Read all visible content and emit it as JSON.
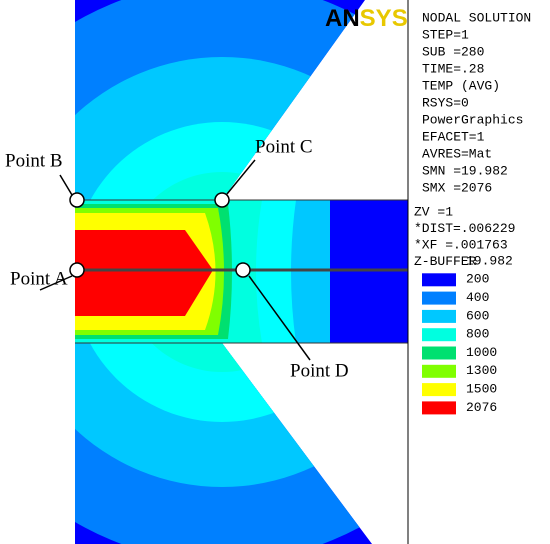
{
  "logo": [
    "AN",
    "SYS"
  ],
  "info": [
    "NODAL SOLUTION",
    "STEP=1",
    "SUB =280",
    "TIME=.28",
    "TEMP      (AVG)",
    "RSYS=0",
    "PowerGraphics",
    "EFACET=1",
    "AVRES=Mat",
    "SMN =19.982",
    "SMX =2076"
  ],
  "view": [
    "ZV  =1",
    "*DIST=.006229",
    "*XF  =.001763",
    "Z-BUFFER"
  ],
  "legend": [
    {
      "label": "19.982"
    },
    {
      "label": "200",
      "color": "#0000ff"
    },
    {
      "label": "400",
      "color": "#0080ff"
    },
    {
      "label": "600",
      "color": "#00c8ff"
    },
    {
      "label": "800",
      "color": "#00ffe0"
    },
    {
      "label": "1000",
      "color": "#00e070"
    },
    {
      "label": "1300",
      "color": "#80ff00"
    },
    {
      "label": "1500",
      "color": "#ffff00"
    },
    {
      "label": "2076",
      "color": "#ff0000"
    }
  ],
  "points": {
    "a": "Point A",
    "b": "Point B",
    "c": "Point C",
    "d": "Point D"
  }
}
